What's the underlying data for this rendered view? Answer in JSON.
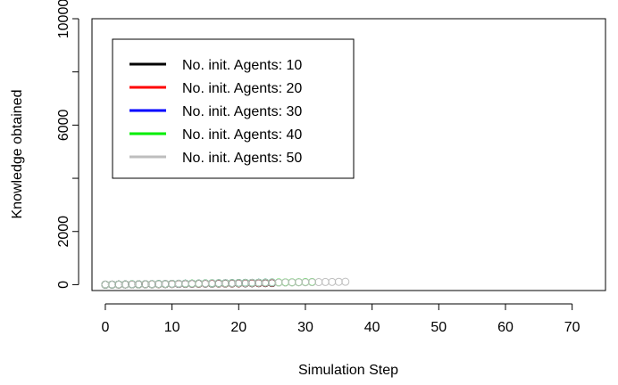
{
  "chart_data": {
    "type": "scatter",
    "title": "",
    "xlabel": "Simulation Step",
    "ylabel": "Knowledge obtained",
    "xlim": [
      -2,
      75
    ],
    "ylim": [
      -220,
      10000
    ],
    "x_ticks": [
      0,
      10,
      20,
      30,
      40,
      50,
      60,
      70
    ],
    "x_tick_labels": [
      "0",
      "10",
      "20",
      "30",
      "40",
      "50",
      "60",
      "70"
    ],
    "y_ticks": [
      0,
      2000,
      6000,
      10000
    ],
    "y_tick_labels": [
      "0",
      "2000",
      "6000",
      "10000"
    ],
    "y_minor_ticks": [
      4000,
      8000
    ],
    "grid": false,
    "legend_position": "top-left",
    "marker": "open-circle",
    "series": [
      {
        "name": "No. init. Agents: 10",
        "color": "#000000",
        "x_start": 0,
        "x_end": 25,
        "y_start": 0,
        "y_end": 60
      },
      {
        "name": "No. init. Agents: 20",
        "color": "#ff0000",
        "x_start": 0,
        "x_end": 25,
        "y_start": 0,
        "y_end": 70
      },
      {
        "name": "No. init. Agents: 30",
        "color": "#0000ff",
        "x_start": 0,
        "x_end": 25,
        "y_start": 0,
        "y_end": 80
      },
      {
        "name": "No. init. Agents: 40",
        "color": "#00ee00",
        "x_start": 0,
        "x_end": 31,
        "y_start": 0,
        "y_end": 100
      },
      {
        "name": "No. init. Agents: 50",
        "color": "#bebebe",
        "x_start": 0,
        "x_end": 36,
        "y_start": 0,
        "y_end": 110
      }
    ]
  }
}
